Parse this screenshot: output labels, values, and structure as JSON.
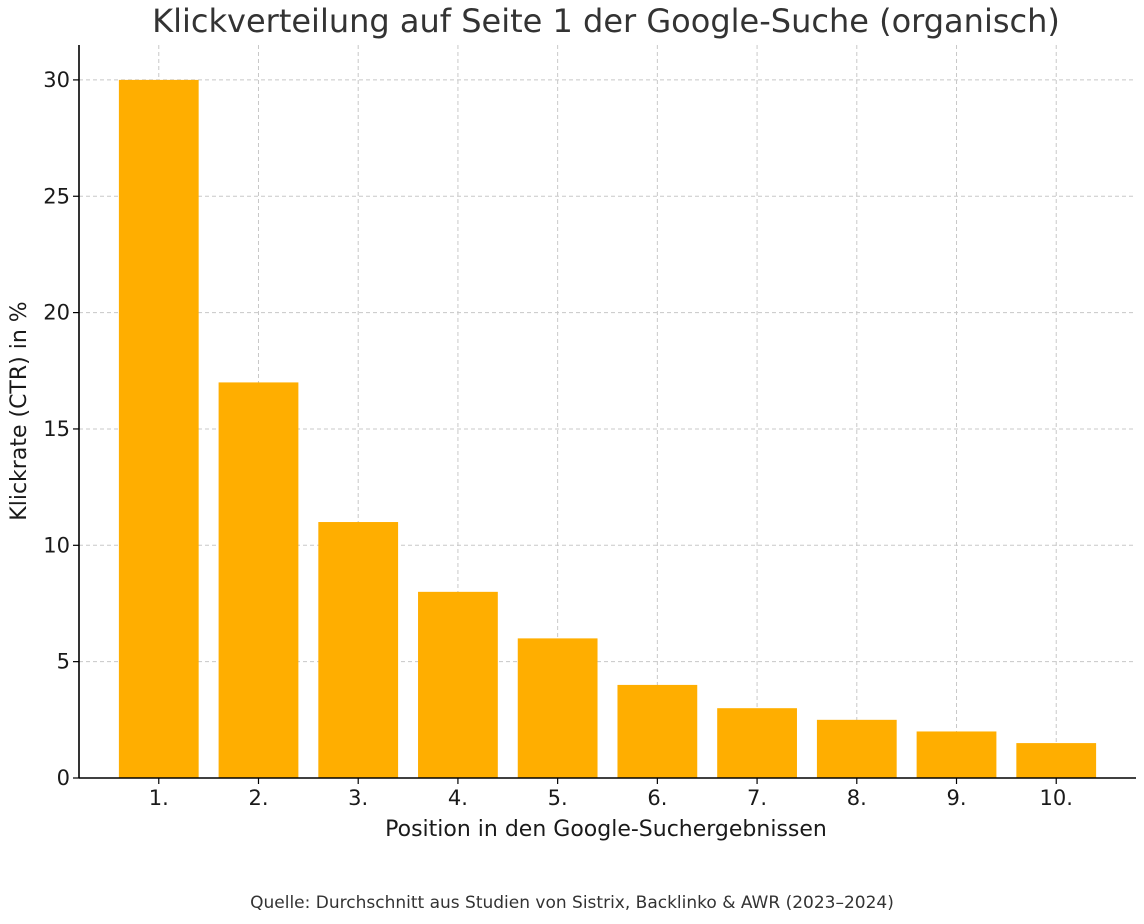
{
  "chart_data": {
    "type": "bar",
    "title": "Klickverteilung auf Seite 1 der Google-Suche (organisch)",
    "xlabel": "Position in den Google-Suchergebnissen",
    "ylabel": "Klickrate (CTR) in %",
    "categories": [
      "1.",
      "2.",
      "3.",
      "4.",
      "5.",
      "6.",
      "7.",
      "8.",
      "9.",
      "10."
    ],
    "values": [
      30,
      17,
      11,
      8,
      6,
      4,
      3,
      2.5,
      2,
      1.5
    ],
    "ylim": [
      0,
      31.5
    ],
    "yticks": [
      "0",
      "5",
      "10",
      "15",
      "20",
      "25",
      "30"
    ],
    "grid": true,
    "bar_color": "#FFAE00",
    "note": "Quelle: Durchschnitt aus Studien von Sistrix, Backlinko & AWR (2023–2024)"
  }
}
